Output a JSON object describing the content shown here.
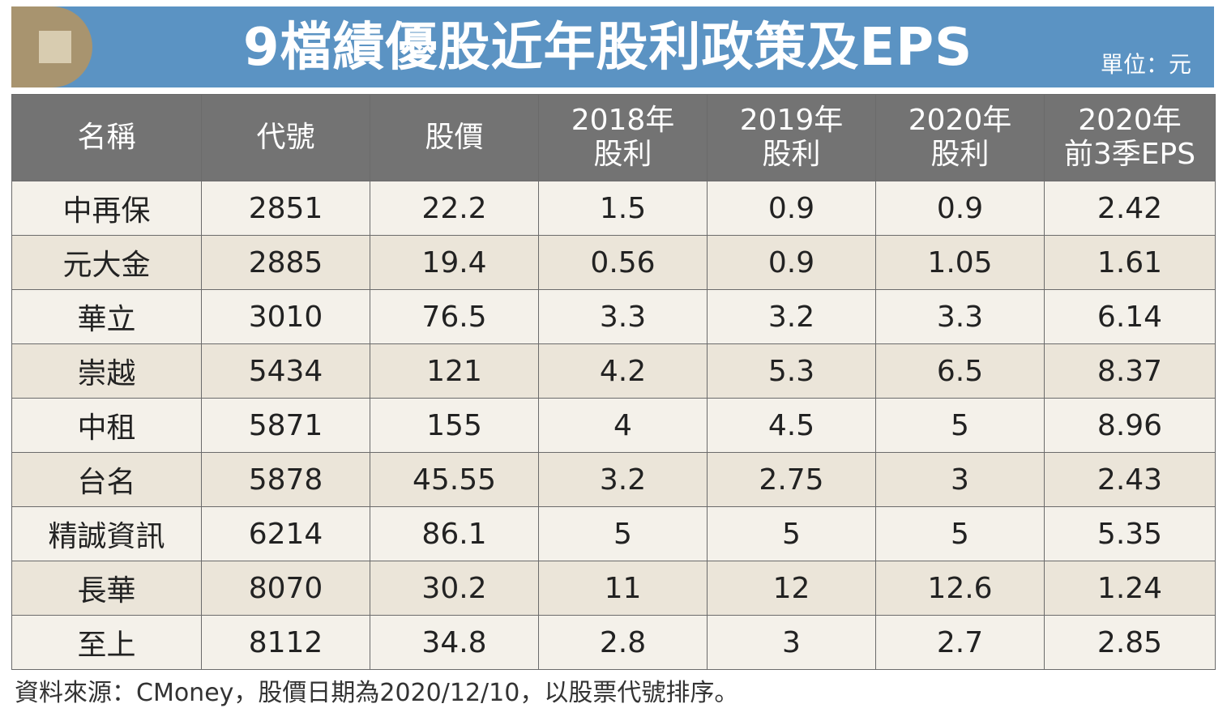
{
  "banner": {
    "title": "9檔績優股近年股利政策及EPS",
    "unit": "單位：元"
  },
  "chart_data": {
    "type": "table",
    "title": "9檔績優股近年股利政策及EPS",
    "unit": "單位：元",
    "columns": [
      {
        "line1": "名稱",
        "line2": ""
      },
      {
        "line1": "代號",
        "line2": ""
      },
      {
        "line1": "股價",
        "line2": ""
      },
      {
        "line1": "2018年",
        "line2": "股利"
      },
      {
        "line1": "2019年",
        "line2": "股利"
      },
      {
        "line1": "2020年",
        "line2": "股利"
      },
      {
        "line1": "2020年",
        "line2": "前3季EPS"
      }
    ],
    "rows": [
      [
        "中再保",
        "2851",
        "22.2",
        "1.5",
        "0.9",
        "0.9",
        "2.42"
      ],
      [
        "元大金",
        "2885",
        "19.4",
        "0.56",
        "0.9",
        "1.05",
        "1.61"
      ],
      [
        "華立",
        "3010",
        "76.5",
        "3.3",
        "3.2",
        "3.3",
        "6.14"
      ],
      [
        "崇越",
        "5434",
        "121",
        "4.2",
        "5.3",
        "6.5",
        "8.37"
      ],
      [
        "中租",
        "5871",
        "155",
        "4",
        "4.5",
        "5",
        "8.96"
      ],
      [
        "台名",
        "5878",
        "45.55",
        "3.2",
        "2.75",
        "3",
        "2.43"
      ],
      [
        "精誠資訊",
        "6214",
        "86.1",
        "5",
        "5",
        "5",
        "5.35"
      ],
      [
        "長華",
        "8070",
        "30.2",
        "11",
        "12",
        "12.6",
        "1.24"
      ],
      [
        "至上",
        "8112",
        "34.8",
        "2.8",
        "3",
        "2.7",
        "2.85"
      ]
    ],
    "source": "資料來源：CMoney，股價日期為2020/12/10，以股票代號排序。"
  },
  "colors": {
    "banner": "#5b93c3",
    "emblem": "#a8946f",
    "header": "#737373",
    "row_light": "#f4f1ea",
    "row_dark": "#ebe5d9"
  }
}
